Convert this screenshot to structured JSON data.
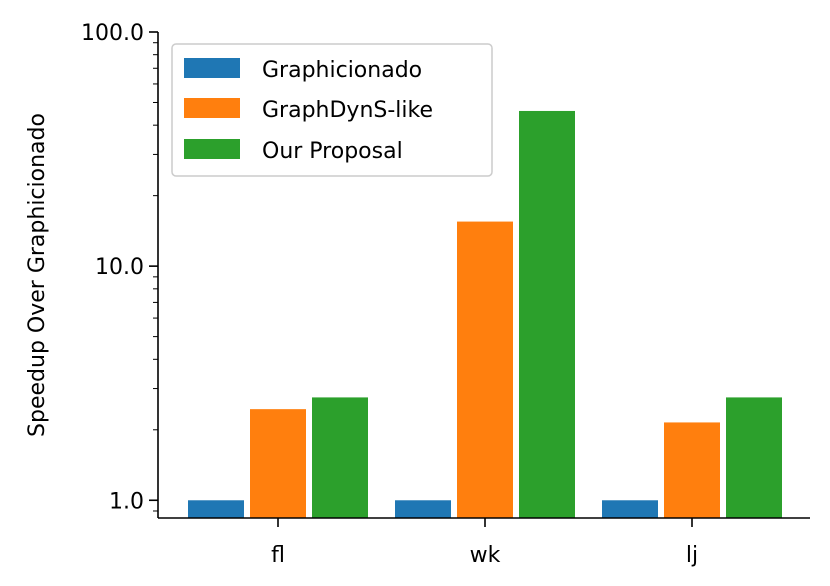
{
  "chart_data": {
    "type": "bar",
    "title": "",
    "xlabel": "",
    "ylabel": "Speedup Over Graphicionado",
    "yscale": "log",
    "ylim": [
      0.84,
      100.0
    ],
    "yticks": [
      1.0,
      10.0,
      100.0
    ],
    "ytick_labels": [
      "1.0",
      "10.0",
      "100.0"
    ],
    "categories": [
      "fl",
      "wk",
      "lj"
    ],
    "series": [
      {
        "name": "Graphicionado",
        "color": "#1f77b4",
        "values": [
          1.0,
          1.0,
          1.0
        ]
      },
      {
        "name": "GraphDynS-like",
        "color": "#ff7f0e",
        "values": [
          2.45,
          15.5,
          2.15
        ]
      },
      {
        "name": "Our Proposal",
        "color": "#2ca02c",
        "values": [
          2.75,
          46.0,
          2.75
        ]
      }
    ],
    "legend": {
      "position": "top-left"
    },
    "grid": false
  }
}
